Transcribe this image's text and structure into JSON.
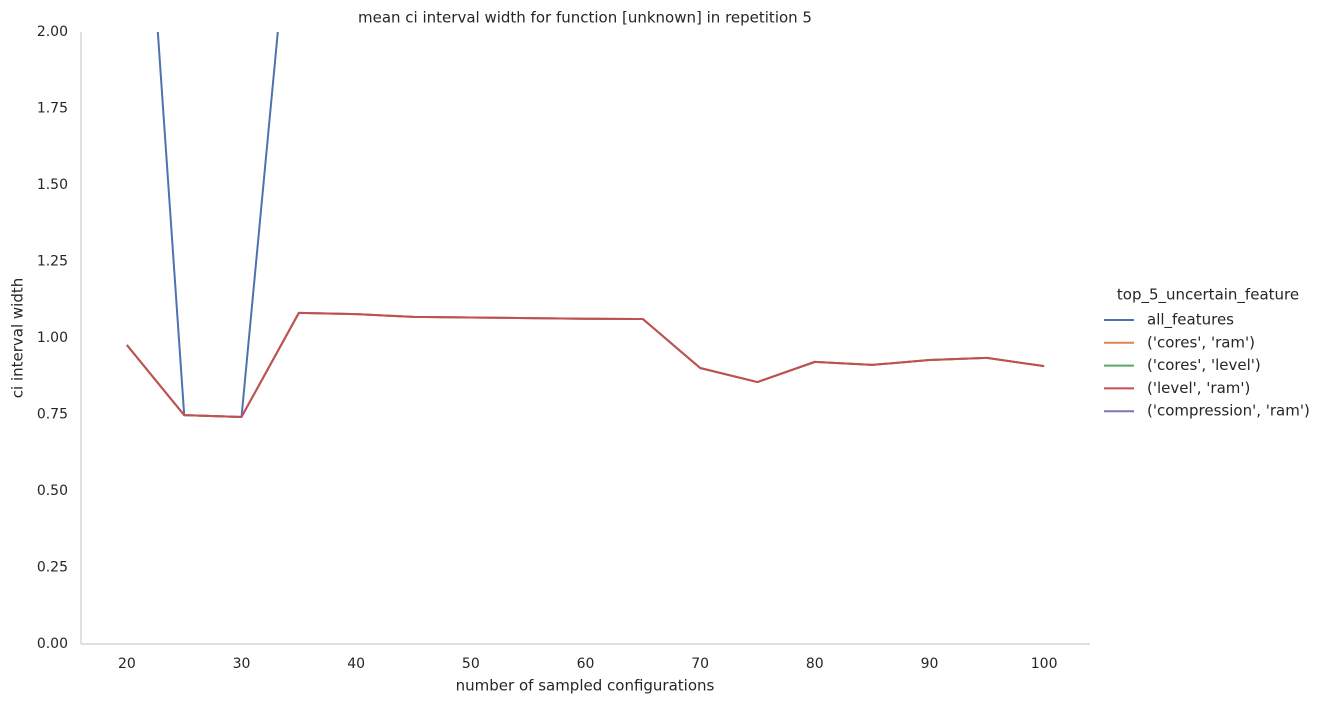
{
  "chart_data": {
    "type": "line",
    "title": "mean ci interval width for function [unknown] in repetition 5",
    "xlabel": "number of sampled configurations",
    "ylabel": "ci interval width",
    "x": [
      20,
      25,
      30,
      35,
      40,
      45,
      50,
      55,
      60,
      65,
      70,
      75,
      80,
      85,
      90,
      95,
      100
    ],
    "series": [
      {
        "name": "all_features",
        "color": "#4c72b0",
        "values": [
          3.47,
          0.748,
          0.742,
          2.73,
          null,
          null,
          null,
          null,
          null,
          null,
          null,
          null,
          null,
          null,
          null,
          null,
          null
        ]
      },
      {
        "name": "('cores', 'ram')",
        "color": "#dd8452",
        "values": [
          0.977,
          0.748,
          0.742,
          1.082,
          1.078,
          1.069,
          1.067,
          1.065,
          1.063,
          1.062,
          0.902,
          0.856,
          0.922,
          0.912,
          0.928,
          0.935,
          0.908
        ]
      },
      {
        "name": "('cores', 'level')",
        "color": "#55a868",
        "values": [
          0.977,
          0.748,
          0.742,
          1.082,
          1.078,
          1.069,
          1.067,
          1.065,
          1.063,
          1.062,
          0.902,
          0.856,
          0.922,
          0.912,
          0.928,
          0.935,
          0.908
        ]
      },
      {
        "name": "('level', 'ram')",
        "color": "#c44e52",
        "values": [
          0.977,
          0.748,
          0.742,
          1.082,
          1.078,
          1.069,
          1.067,
          1.065,
          1.063,
          1.062,
          0.902,
          0.856,
          0.922,
          0.912,
          0.928,
          0.935,
          0.908
        ]
      },
      {
        "name": "('compression', 'ram')",
        "color": "#8172b3",
        "values": [
          null,
          null,
          null,
          null,
          null,
          null,
          null,
          null,
          null,
          null,
          null,
          null,
          null,
          null,
          null,
          null,
          null
        ]
      }
    ],
    "legend_title": "top_5_uncertain_feature",
    "legend": "right",
    "xlim": [
      16,
      104
    ],
    "xticks": [
      20,
      30,
      40,
      50,
      60,
      70,
      80,
      90,
      100
    ],
    "ylim": [
      0,
      2
    ],
    "yticks": [
      {
        "value": 0,
        "label": "0.00"
      },
      {
        "value": 0.25,
        "label": "0.25"
      },
      {
        "value": 0.5,
        "label": "0.50"
      },
      {
        "value": 0.75,
        "label": "0.75"
      },
      {
        "value": 1,
        "label": "1.00"
      },
      {
        "value": 1.25,
        "label": "1.25"
      },
      {
        "value": 1.5,
        "label": "1.50"
      },
      {
        "value": 1.75,
        "label": "1.75"
      },
      {
        "value": 2,
        "label": "2.00"
      }
    ],
    "grid": false
  }
}
